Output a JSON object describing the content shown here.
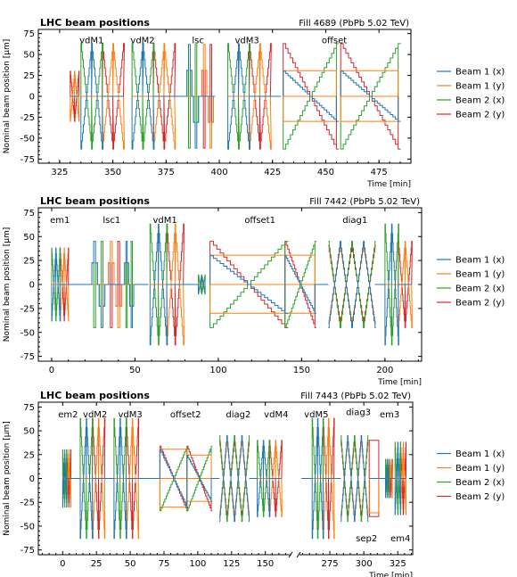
{
  "colors": {
    "beam1x": "#1f77b4",
    "beam1y": "#ff7f0e",
    "beam2x": "#2ca02c",
    "beam2y": "#d62728"
  },
  "chart_data": [
    {
      "type": "line",
      "title": "LHC beam positions",
      "right_title": "Fill 4689 (PbPb 5.02 TeV)",
      "xlabel": "Time [min]",
      "ylabel": "Nominal beam position [μm]",
      "xlim": [
        315,
        490
      ],
      "ylim": [
        -80,
        80
      ],
      "x_ticks": [
        325,
        350,
        375,
        400,
        425,
        450,
        475
      ],
      "y_ticks": [
        -75,
        -50,
        -25,
        0,
        25,
        50,
        75
      ],
      "legend": "right",
      "series": [
        {
          "name": "Beam 1 (x)",
          "color_key": "beam1x"
        },
        {
          "name": "Beam 1 (y)",
          "color_key": "beam1y"
        },
        {
          "name": "Beam 2 (x)",
          "color_key": "beam2x"
        },
        {
          "name": "Beam 2 (y)",
          "color_key": "beam2y"
        }
      ],
      "annotations": [
        {
          "text": "vdM1",
          "x": 340,
          "y": 68
        },
        {
          "text": "vdM2",
          "x": 364,
          "y": 68
        },
        {
          "text": "lsc",
          "x": 390,
          "y": 68
        },
        {
          "text": "vdM3",
          "x": 413,
          "y": 68
        },
        {
          "text": "offset",
          "x": 454,
          "y": 68
        }
      ],
      "segments": [
        {
          "kind": "pair",
          "x0": 330,
          "x1": 334,
          "amp": 30,
          "axis": "y"
        },
        {
          "kind": "pair",
          "x0": 335,
          "x1": 345,
          "amp": 63,
          "axis": "x"
        },
        {
          "kind": "pair",
          "x0": 345,
          "x1": 355,
          "amp": 63,
          "axis": "y"
        },
        {
          "kind": "pair",
          "x0": 359,
          "x1": 369,
          "amp": 63,
          "axis": "x"
        },
        {
          "kind": "pair",
          "x0": 369,
          "x1": 379,
          "amp": 63,
          "axis": "y"
        },
        {
          "kind": "flat",
          "x0": 379,
          "x1": 384
        },
        {
          "kind": "lsc",
          "x0": 384,
          "x1": 391,
          "amp": 62,
          "axis": "x"
        },
        {
          "kind": "lsc",
          "x0": 391,
          "x1": 398,
          "amp": 62,
          "axis": "y"
        },
        {
          "kind": "pair",
          "x0": 404,
          "x1": 414,
          "amp": 63,
          "axis": "x"
        },
        {
          "kind": "pair",
          "x0": 414,
          "x1": 424,
          "amp": 63,
          "axis": "y"
        },
        {
          "kind": "flat",
          "x0": 424,
          "x1": 429
        },
        {
          "kind": "offset",
          "x0": 430,
          "x1": 455,
          "amp": 63,
          "off": 30
        },
        {
          "kind": "offset",
          "x0": 457,
          "x1": 484,
          "amp": 63,
          "off": 30
        }
      ]
    },
    {
      "type": "line",
      "title": "LHC beam positions",
      "right_title": "Fill 7442 (PbPb 5.02 TeV)",
      "xlabel": "Time [min]",
      "ylabel": "Nominal beam position [μm]",
      "xlim": [
        -8,
        222
      ],
      "ylim": [
        -80,
        80
      ],
      "x_ticks": [
        0,
        50,
        100,
        150,
        200
      ],
      "y_ticks": [
        -75,
        -50,
        -25,
        0,
        25,
        50,
        75
      ],
      "legend": "right",
      "series": [
        {
          "name": "Beam 1 (x)",
          "color_key": "beam1x"
        },
        {
          "name": "Beam 1 (y)",
          "color_key": "beam1y"
        },
        {
          "name": "Beam 2 (x)",
          "color_key": "beam2x"
        },
        {
          "name": "Beam 2 (y)",
          "color_key": "beam2y"
        }
      ],
      "annotations": [
        {
          "text": "em1",
          "x": 5,
          "y": 68
        },
        {
          "text": "lsc1",
          "x": 36,
          "y": 68
        },
        {
          "text": "vdM1",
          "x": 68,
          "y": 68
        },
        {
          "text": "offset1",
          "x": 125,
          "y": 68
        },
        {
          "text": "diag1",
          "x": 182,
          "y": 68
        }
      ],
      "segments": [
        {
          "kind": "pair",
          "x0": 0,
          "x1": 5,
          "amp": 38,
          "axis": "x"
        },
        {
          "kind": "pair",
          "x0": 5,
          "x1": 10,
          "amp": 38,
          "axis": "y"
        },
        {
          "kind": "flat",
          "x0": 10,
          "x1": 23
        },
        {
          "kind": "lsc",
          "x0": 23,
          "x1": 33,
          "amp": 45,
          "axis": "x"
        },
        {
          "kind": "lsc",
          "x0": 33,
          "x1": 43,
          "amp": 45,
          "axis": "y"
        },
        {
          "kind": "lsc",
          "x0": 43,
          "x1": 50,
          "amp": 45,
          "axis": "x"
        },
        {
          "kind": "flat",
          "x0": 50,
          "x1": 58
        },
        {
          "kind": "pair",
          "x0": 59,
          "x1": 69,
          "amp": 63,
          "axis": "x"
        },
        {
          "kind": "pair",
          "x0": 69,
          "x1": 79,
          "amp": 63,
          "axis": "y"
        },
        {
          "kind": "flat",
          "x0": 79,
          "x1": 88
        },
        {
          "kind": "pair",
          "x0": 88,
          "x1": 92,
          "amp": 10,
          "axis": "x"
        },
        {
          "kind": "offset",
          "x0": 95,
          "x1": 140,
          "amp": 45,
          "off": 30
        },
        {
          "kind": "offset",
          "x0": 140,
          "x1": 158,
          "amp": 45,
          "off": 30
        },
        {
          "kind": "flat",
          "x0": 158,
          "x1": 166
        },
        {
          "kind": "diag",
          "x0": 166,
          "x1": 180,
          "amp": 45
        },
        {
          "kind": "diag",
          "x0": 180,
          "x1": 194,
          "amp": 45
        },
        {
          "kind": "flat",
          "x0": 194,
          "x1": 200
        },
        {
          "kind": "pair",
          "x0": 200,
          "x1": 208,
          "amp": 63,
          "axis": "x"
        },
        {
          "kind": "pair",
          "x0": 208,
          "x1": 216,
          "amp": 45,
          "axis": "y"
        }
      ]
    },
    {
      "type": "line",
      "title": "LHC beam positions",
      "right_title": "Fill 7443 (PbPb 5.02 TeV)",
      "xlabel": "Time [min]",
      "ylabel": "Nominal beam position [μm]",
      "ylim": [
        -80,
        80
      ],
      "broken_x_axis": true,
      "x_ticks": [
        0,
        25,
        50,
        75,
        100,
        125,
        150,
        275,
        300,
        325
      ],
      "y_ticks": [
        -75,
        -50,
        -25,
        0,
        25,
        50,
        75
      ],
      "legend": "right",
      "series": [
        {
          "name": "Beam 1 (x)",
          "color_key": "beam1x"
        },
        {
          "name": "Beam 1 (y)",
          "color_key": "beam1y"
        },
        {
          "name": "Beam 2 (x)",
          "color_key": "beam2x"
        },
        {
          "name": "Beam 2 (y)",
          "color_key": "beam2y"
        }
      ],
      "annotations": [
        {
          "text": "em2",
          "x": 4,
          "y": 68
        },
        {
          "text": "vdM2",
          "x": 24,
          "y": 68
        },
        {
          "text": "vdM3",
          "x": 50,
          "y": 68
        },
        {
          "text": "offset2",
          "x": 91,
          "y": 68
        },
        {
          "text": "diag2",
          "x": 130,
          "y": 68
        },
        {
          "text": "vdM4",
          "x": 158,
          "y": 68
        },
        {
          "text": "vdM5",
          "x": 265,
          "y": 68
        },
        {
          "text": "diag3",
          "x": 296,
          "y": 70
        },
        {
          "text": "em3",
          "x": 319,
          "y": 68
        },
        {
          "text": "sep2",
          "x": 302,
          "y": -62
        },
        {
          "text": "em4",
          "x": 327,
          "y": -62
        }
      ],
      "segments_left": {
        "xlim": [
          -18,
          170
        ],
        "segments": [
          {
            "kind": "pair",
            "x0": 0,
            "x1": 3,
            "amp": 30,
            "axis": "x"
          },
          {
            "kind": "pair",
            "x0": 3,
            "x1": 6,
            "amp": 30,
            "axis": "y"
          },
          {
            "kind": "flat",
            "x0": 6,
            "x1": 13
          },
          {
            "kind": "pair",
            "x0": 13,
            "x1": 22,
            "amp": 63,
            "axis": "x"
          },
          {
            "kind": "pair",
            "x0": 22,
            "x1": 31,
            "amp": 63,
            "axis": "y"
          },
          {
            "kind": "flat",
            "x0": 31,
            "x1": 38
          },
          {
            "kind": "pair",
            "x0": 38,
            "x1": 47,
            "amp": 63,
            "axis": "x"
          },
          {
            "kind": "pair",
            "x0": 47,
            "x1": 56,
            "amp": 63,
            "axis": "y"
          },
          {
            "kind": "flat",
            "x0": 56,
            "x1": 72
          },
          {
            "kind": "offset",
            "x0": 72,
            "x1": 92,
            "amp": 34,
            "off": 30
          },
          {
            "kind": "offset",
            "x0": 92,
            "x1": 110,
            "amp": 34,
            "off": 24
          },
          {
            "kind": "flat",
            "x0": 110,
            "x1": 116
          },
          {
            "kind": "diag",
            "x0": 116,
            "x1": 127,
            "amp": 45
          },
          {
            "kind": "diag",
            "x0": 127,
            "x1": 138,
            "amp": 45
          },
          {
            "kind": "flat",
            "x0": 138,
            "x1": 144
          },
          {
            "kind": "pair",
            "x0": 144,
            "x1": 153,
            "amp": 40,
            "axis": "x"
          },
          {
            "kind": "pair",
            "x0": 153,
            "x1": 162,
            "amp": 40,
            "axis": "y"
          }
        ]
      },
      "segments_right": {
        "xlim": [
          252,
          336
        ],
        "segments": [
          {
            "kind": "flat",
            "x0": 254,
            "x1": 262
          },
          {
            "kind": "pair",
            "x0": 262,
            "x1": 270,
            "amp": 63,
            "axis": "x"
          },
          {
            "kind": "pair",
            "x0": 270,
            "x1": 278,
            "amp": 63,
            "axis": "y"
          },
          {
            "kind": "flat",
            "x0": 278,
            "x1": 283
          },
          {
            "kind": "diag",
            "x0": 283,
            "x1": 293,
            "amp": 45
          },
          {
            "kind": "diag",
            "x0": 293,
            "x1": 303,
            "amp": 45
          },
          {
            "kind": "sep",
            "x0": 304,
            "x1": 311,
            "amp": 40
          },
          {
            "kind": "flat",
            "x0": 311,
            "x1": 316
          },
          {
            "kind": "pair",
            "x0": 316,
            "x1": 318.5,
            "amp": 20,
            "axis": "x"
          },
          {
            "kind": "pair",
            "x0": 318.5,
            "x1": 321,
            "amp": 20,
            "axis": "y"
          },
          {
            "kind": "flat",
            "x0": 321,
            "x1": 323
          },
          {
            "kind": "pair",
            "x0": 323,
            "x1": 327,
            "amp": 38,
            "axis": "x"
          },
          {
            "kind": "pair",
            "x0": 327,
            "x1": 331,
            "amp": 38,
            "axis": "y"
          }
        ]
      }
    }
  ]
}
